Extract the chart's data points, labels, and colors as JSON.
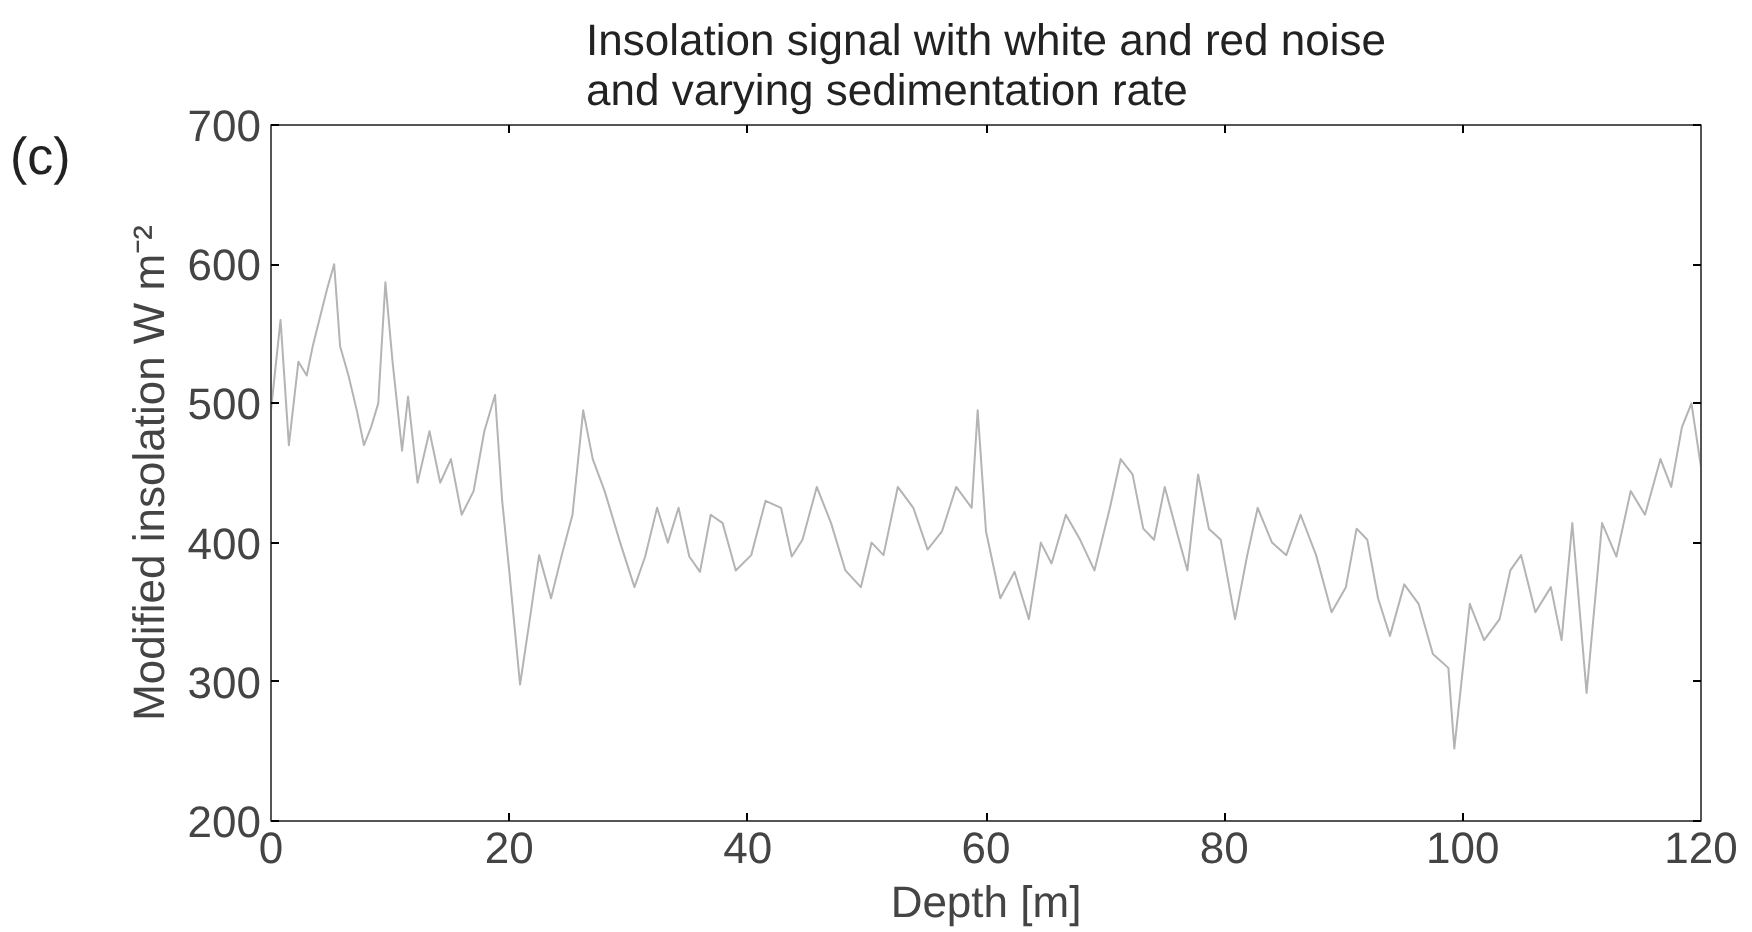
{
  "chart_data": {
    "type": "line",
    "title": "Insolation signal with white and red noise\nand varying sedimentation rate",
    "xlabel": "Depth [m]",
    "ylabel": "Modified insolation W m⁻²",
    "annotations": [
      "(c)"
    ],
    "x": [
      0,
      0.8,
      1.5,
      2.3,
      3,
      3.5,
      4.2,
      4.7,
      5.3,
      5.8,
      6.5,
      7.2,
      7.8,
      8.4,
      9,
      9.6,
      10.2,
      11,
      11.5,
      12.3,
      13.3,
      14.2,
      15.1,
      16,
      17,
      17.9,
      18.8,
      19.4,
      20,
      20.9,
      21.7,
      22.5,
      23.5,
      24.4,
      25.3,
      26.2,
      27,
      28,
      29.3,
      30.5,
      31.4,
      32.4,
      33.3,
      34.2,
      35.1,
      36,
      36.9,
      37.9,
      39,
      40.3,
      41.5,
      42.8,
      43.7,
      44.6,
      45.8,
      47,
      48.2,
      49.5,
      50.4,
      51.4,
      52.6,
      53.9,
      55.1,
      56.3,
      57.5,
      58.8,
      59.3,
      60,
      61.2,
      62.4,
      63.6,
      64.6,
      65.5,
      66.7,
      67.9,
      69.1,
      70.4,
      71.3,
      72.3,
      73.2,
      74.1,
      75,
      76,
      76.9,
      77.8,
      78.7,
      79.7,
      80.9,
      81.9,
      82.8,
      84,
      85.2,
      86.4,
      87.7,
      89,
      90.2,
      91.1,
      92,
      92.9,
      93.9,
      95.1,
      96.3,
      97.5,
      98.8,
      99.3,
      100.6,
      101.8,
      103.1,
      104,
      104.9,
      106.1,
      107.4,
      108.3,
      109.2,
      110.4,
      111.7,
      112.9,
      114.1,
      115.3,
      116.6,
      117.5,
      118.4,
      119.2,
      120
    ],
    "series": [
      {
        "color": "#b4b4b4",
        "values": [
          495,
          560,
          470,
          530,
          520,
          541,
          565,
          582,
          600,
          541,
          520,
          495,
          470,
          483,
          500,
          587,
          530,
          466,
          505,
          443,
          480,
          443,
          460,
          420,
          437,
          480,
          506,
          430,
          379,
          298,
          344,
          391,
          360,
          391,
          420,
          495,
          460,
          437,
          400,
          368,
          390,
          425,
          400,
          425,
          390,
          379,
          420,
          414,
          380,
          391,
          430,
          425,
          390,
          402,
          440,
          414,
          380,
          368,
          400,
          391,
          440,
          425,
          395,
          408,
          440,
          425,
          495,
          408,
          360,
          379,
          345,
          400,
          385,
          420,
          402,
          380,
          425,
          460,
          449,
          410,
          402,
          440,
          408,
          380,
          449,
          410,
          402,
          345,
          390,
          425,
          400,
          391,
          420,
          391,
          350,
          368,
          410,
          402,
          360,
          333,
          370,
          356,
          320,
          310,
          252,
          356,
          330,
          345,
          380,
          391,
          350,
          368,
          330,
          414,
          292,
          414,
          390,
          437,
          420,
          460,
          440,
          483,
          500,
          454
        ]
      }
    ],
    "xlim": [
      0,
      120
    ],
    "xticks": [
      0,
      20,
      40,
      60,
      80,
      100,
      120
    ],
    "ylim": [
      200,
      700
    ],
    "yticks": [
      200,
      300,
      400,
      500,
      600,
      700
    ],
    "grid": false,
    "marker": "none",
    "line_style": "solid"
  }
}
